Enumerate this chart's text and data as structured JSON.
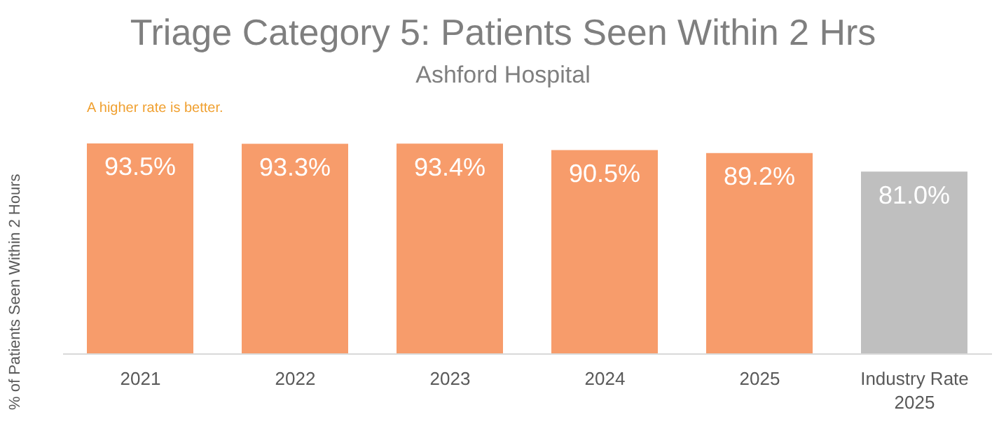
{
  "chart_data": {
    "type": "bar",
    "title": "Triage Category 5: Patients Seen Within 2 Hrs",
    "subtitle": "Ashford Hospital",
    "ylabel": "% of Patients Seen Within 2 Hours",
    "annotations": [
      "A higher rate is better."
    ],
    "categories": [
      "2021",
      "2022",
      "2023",
      "2024",
      "2025",
      "Industry Rate 2025"
    ],
    "values": [
      93.5,
      93.3,
      93.4,
      90.5,
      89.2,
      81.0
    ],
    "colors": [
      "#f79c6b",
      "#f79c6b",
      "#f79c6b",
      "#f79c6b",
      "#f79c6b",
      "#bfbfbf"
    ],
    "value_labels": [
      "93.5%",
      "93.3%",
      "93.4%",
      "90.5%",
      "89.2%",
      "81.0%"
    ],
    "tick_labels": "x",
    "grid": false,
    "legend": false
  }
}
